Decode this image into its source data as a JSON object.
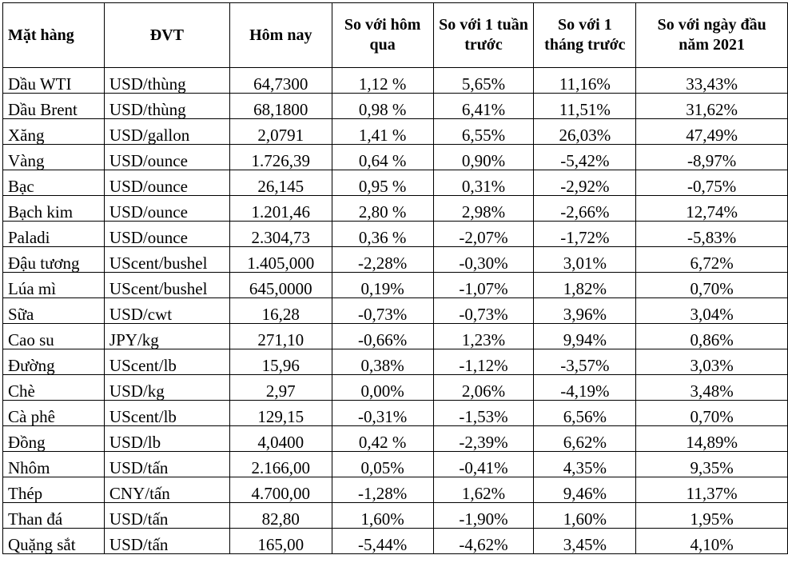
{
  "headers": [
    "Mặt hàng",
    "ĐVT",
    "Hôm nay",
    "So với hôm qua",
    "So với 1 tuần trước",
    "So với 1 tháng trước",
    "So với ngày đầu năm 2021"
  ],
  "rows": [
    [
      "Dầu WTI",
      "USD/thùng",
      "64,7300",
      "1,12 %",
      "5,65%",
      "11,16%",
      "33,43%"
    ],
    [
      "Dầu Brent",
      "USD/thùng",
      "68,1800",
      "0,98 %",
      "6,41%",
      "11,51%",
      "31,62%"
    ],
    [
      "Xăng",
      "USD/gallon",
      "2,0791",
      "1,41 %",
      "6,55%",
      "26,03%",
      "47,49%"
    ],
    [
      "Vàng",
      "USD/ounce",
      "1.726,39",
      "0,64 %",
      "0,90%",
      "-5,42%",
      "-8,97%"
    ],
    [
      "Bạc",
      "USD/ounce",
      "26,145",
      "0,95 %",
      "0,31%",
      "-2,92%",
      "-0,75%"
    ],
    [
      "Bạch kim",
      "USD/ounce",
      "1.201,46",
      "2,80 %",
      "2,98%",
      "-2,66%",
      "12,74%"
    ],
    [
      "Paladi",
      "USD/ounce",
      "2.304,73",
      "0,36 %",
      "-2,07%",
      "-1,72%",
      "-5,83%"
    ],
    [
      "Đậu tương",
      "UScent/bushel",
      "1.405,000",
      "-2,28%",
      "-0,30%",
      "3,01%",
      "6,72%"
    ],
    [
      "Lúa mì",
      "UScent/bushel",
      "645,0000",
      "0,19%",
      "-1,07%",
      "1,82%",
      "0,70%"
    ],
    [
      "Sữa",
      "USD/cwt",
      "16,28",
      "-0,73%",
      "-0,73%",
      "3,96%",
      "3,04%"
    ],
    [
      "Cao su",
      "JPY/kg",
      "271,10",
      "-0,66%",
      "1,23%",
      "9,94%",
      "0,86%"
    ],
    [
      "Đường",
      "UScent/lb",
      "15,96",
      "0,38%",
      "-1,12%",
      "-3,57%",
      "3,03%"
    ],
    [
      "Chè",
      "USD/kg",
      "2,97",
      "0,00%",
      "2,06%",
      "-4,19%",
      "3,48%"
    ],
    [
      "Cà phê",
      "UScent/lb",
      "129,15",
      "-0,31%",
      "-1,53%",
      "6,56%",
      "0,70%"
    ],
    [
      "Đồng",
      "USD/lb",
      "4,0400",
      "0,42 %",
      "-2,39%",
      "6,62%",
      "14,89%"
    ],
    [
      "Nhôm",
      "USD/tấn",
      "2.166,00",
      "0,05%",
      "-0,41%",
      "4,35%",
      "9,35%"
    ],
    [
      "Thép",
      "CNY/tấn",
      "4.700,00",
      "-1,28%",
      "1,62%",
      "9,46%",
      "11,37%"
    ],
    [
      "Than đá",
      "USD/tấn",
      "82,80",
      "1,60%",
      "-1,90%",
      "1,60%",
      "1,95%"
    ],
    [
      "Quặng sắt",
      "USD/tấn",
      "165,00",
      "-5,44%",
      "-4,62%",
      "3,45%",
      "4,10%"
    ]
  ]
}
